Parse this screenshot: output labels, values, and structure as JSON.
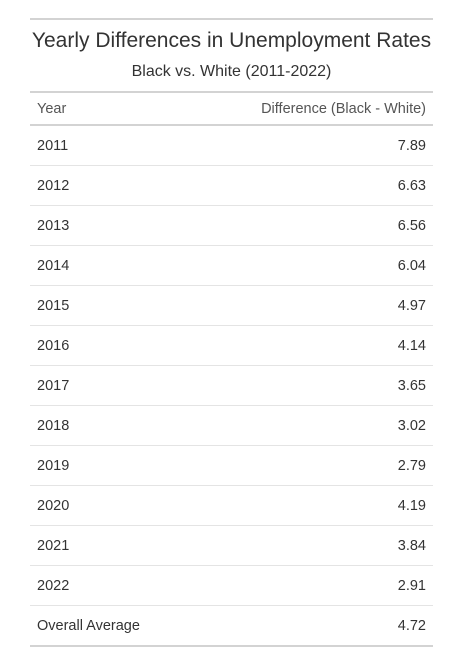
{
  "chart_data": {
    "type": "table",
    "title": "Yearly Differences in Unemployment Rates",
    "subtitle": "Black vs. White (2011-2022)",
    "columns": [
      "Year",
      "Difference (Black - White)"
    ],
    "rows": [
      {
        "year": "2011",
        "value": "7.89"
      },
      {
        "year": "2012",
        "value": "6.63"
      },
      {
        "year": "2013",
        "value": "6.56"
      },
      {
        "year": "2014",
        "value": "6.04"
      },
      {
        "year": "2015",
        "value": "4.97"
      },
      {
        "year": "2016",
        "value": "4.14"
      },
      {
        "year": "2017",
        "value": "3.65"
      },
      {
        "year": "2018",
        "value": "3.02"
      },
      {
        "year": "2019",
        "value": "2.79"
      },
      {
        "year": "2020",
        "value": "4.19"
      },
      {
        "year": "2021",
        "value": "3.84"
      },
      {
        "year": "2022",
        "value": "2.91"
      }
    ],
    "summary_row": {
      "label": "Overall Average",
      "value": "4.72"
    }
  }
}
